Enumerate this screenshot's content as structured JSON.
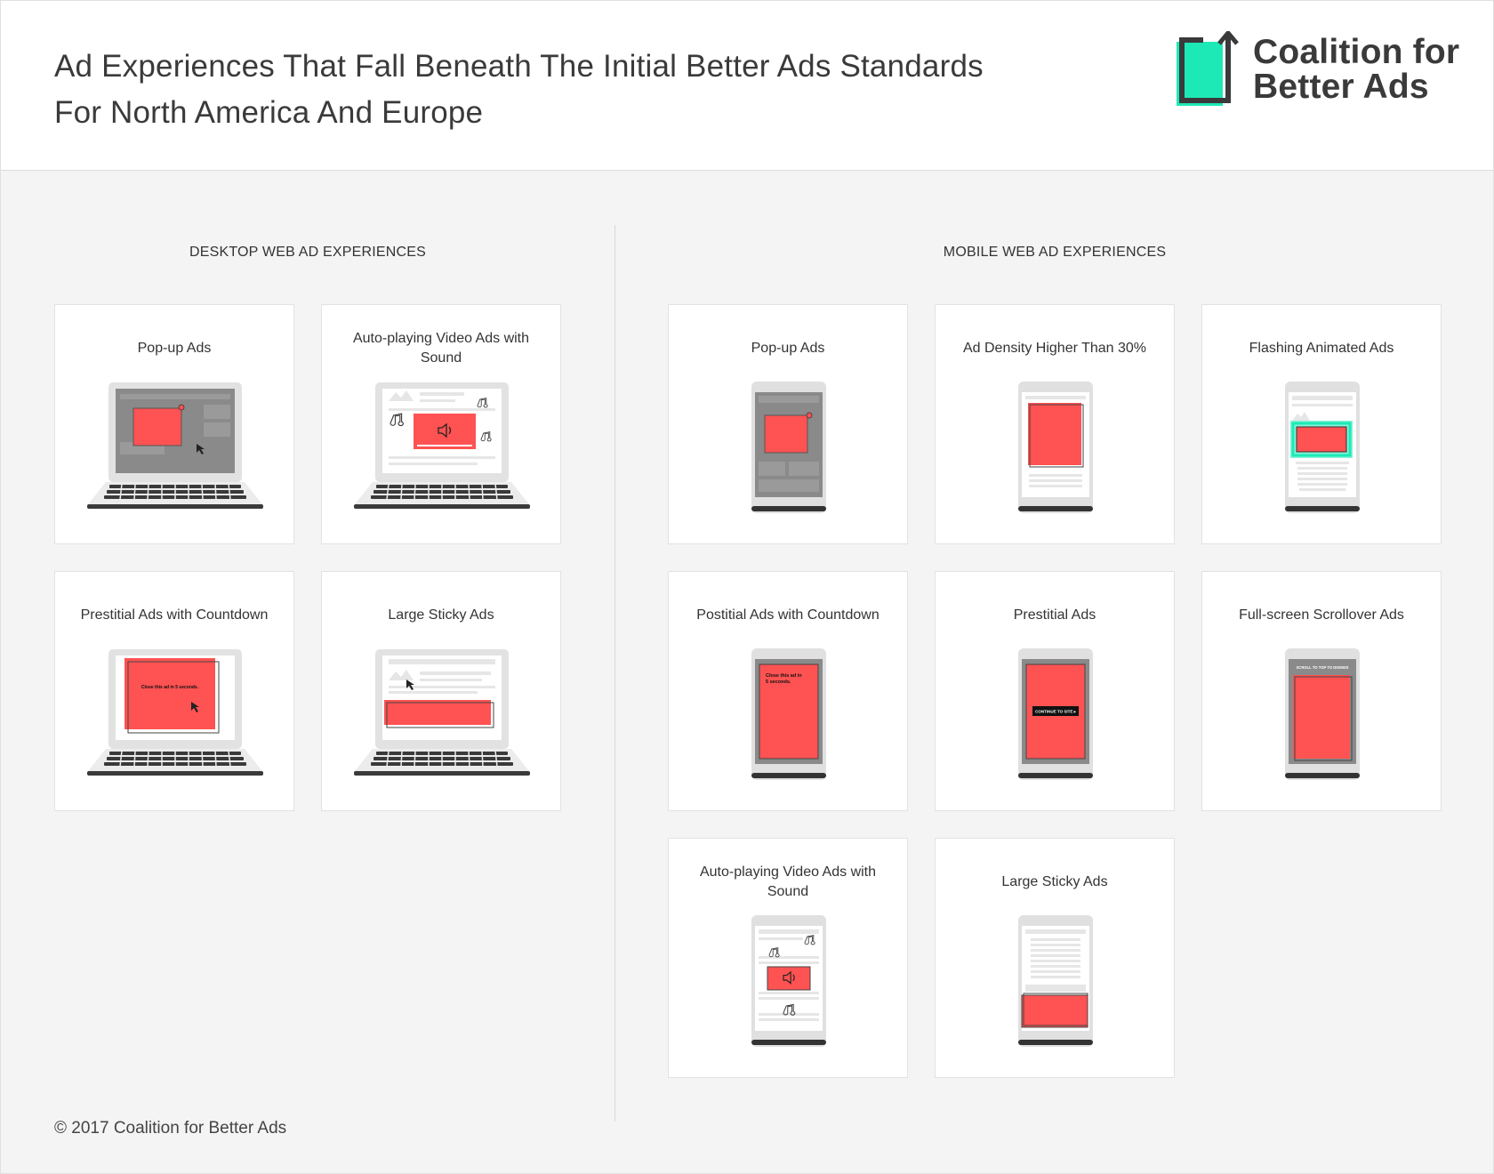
{
  "header": {
    "title_line1": "Ad Experiences That Fall Beneath The Initial Better Ads Standards",
    "title_line2": "For North America And Europe",
    "logo_line1": "Coalition for",
    "logo_line2": "Better Ads",
    "logo_icon": "square-arrow-up-icon"
  },
  "colors": {
    "ad_red": "#ff5252",
    "brand_teal": "#1de9b6",
    "dark": "#3a3a3a"
  },
  "sections": {
    "desktop_label": "DESKTOP WEB AD EXPERIENCES",
    "mobile_label": "MOBILE WEB AD EXPERIENCES"
  },
  "desktop_cards": [
    {
      "title": "Pop-up Ads",
      "icon": "laptop-popup-icon"
    },
    {
      "title": "Auto-playing Video Ads with Sound",
      "icon": "laptop-video-sound-icon"
    },
    {
      "title": "Prestitial Ads with Countdown",
      "icon": "laptop-prestitial-countdown-icon",
      "ad_text": "Close this ad in 5 seconds."
    },
    {
      "title": "Large Sticky Ads",
      "icon": "laptop-sticky-ad-icon"
    }
  ],
  "mobile_cards": [
    {
      "title": "Pop-up Ads",
      "icon": "phone-popup-icon"
    },
    {
      "title": "Ad Density Higher Than 30%",
      "icon": "phone-ad-density-icon"
    },
    {
      "title": "Flashing Animated Ads",
      "icon": "phone-flashing-ad-icon"
    },
    {
      "title": "Postitial Ads with Countdown",
      "icon": "phone-postitial-countdown-icon",
      "ad_text_1": "Close this ad in",
      "ad_text_2": "5 seconds."
    },
    {
      "title": "Prestitial Ads",
      "icon": "phone-prestitial-icon",
      "ad_text": "CONTINUE TO SITE ▸"
    },
    {
      "title": "Full-screen Scrollover Ads",
      "icon": "phone-scrollover-icon",
      "ad_text": "SCROLL TO TOP TO DISMISS"
    },
    {
      "title": "Auto-playing Video Ads with Sound",
      "icon": "phone-video-sound-icon"
    },
    {
      "title": "Large Sticky Ads",
      "icon": "phone-sticky-ad-icon"
    }
  ],
  "footer": {
    "copyright": "© 2017 Coalition for Better Ads"
  }
}
